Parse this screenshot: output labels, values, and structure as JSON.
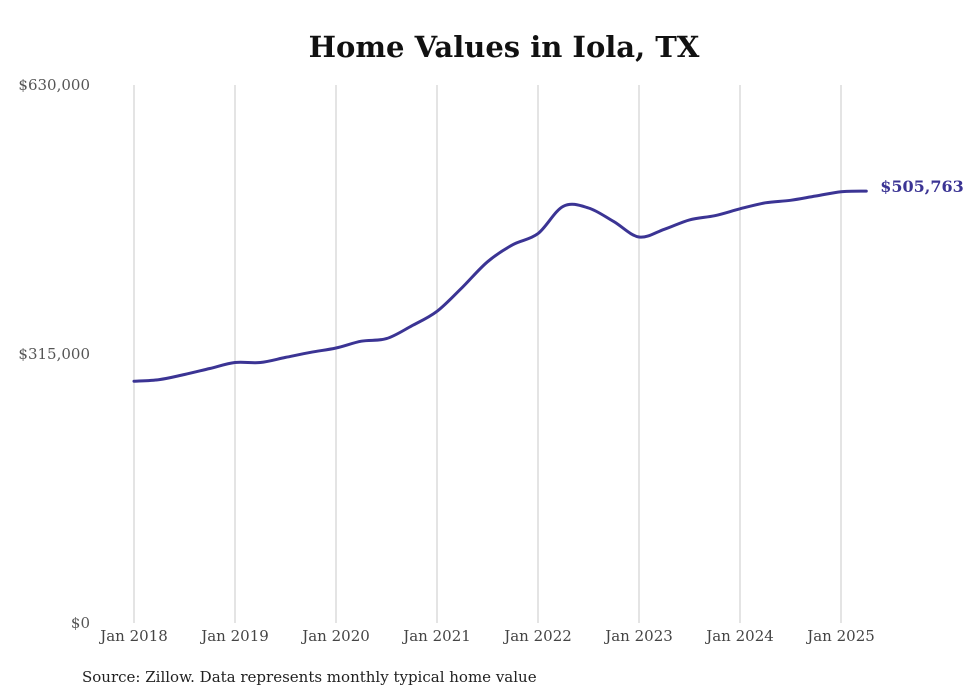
{
  "chart_data": {
    "type": "line",
    "title": "Home Values in Iola, TX",
    "source": "Source: Zillow. Data represents monthly typical home value",
    "ylim": [
      0,
      630000
    ],
    "yticks": [
      "$0",
      "$315,000",
      "$630,000"
    ],
    "ytick_values": [
      0,
      315000,
      630000
    ],
    "xticks": [
      "Jan 2018",
      "Jan 2019",
      "Jan 2020",
      "Jan 2021",
      "Jan 2022",
      "Jan 2023",
      "Jan 2024",
      "Jan 2025"
    ],
    "xtick_values": [
      "2018-01",
      "2019-01",
      "2020-01",
      "2021-01",
      "2022-01",
      "2023-01",
      "2024-01",
      "2025-01"
    ],
    "grid": "vertical",
    "line_color": "#3b3494",
    "end_label": "$505,763",
    "series": [
      {
        "x": [
          "2018-01",
          "2018-04",
          "2018-07",
          "2018-10",
          "2019-01",
          "2019-04",
          "2019-07",
          "2019-10",
          "2020-01",
          "2020-04",
          "2020-07",
          "2020-10",
          "2021-01",
          "2021-04",
          "2021-07",
          "2021-10",
          "2022-01",
          "2022-04",
          "2022-07",
          "2022-10",
          "2023-01",
          "2023-04",
          "2023-07",
          "2023-10",
          "2024-01",
          "2024-04",
          "2024-07",
          "2024-10",
          "2025-01",
          "2025-04"
        ],
        "values": [
          283000,
          285000,
          291000,
          298000,
          305000,
          305000,
          311000,
          317000,
          322000,
          330000,
          333000,
          348000,
          365000,
          393000,
          423000,
          443000,
          456000,
          488000,
          486000,
          470000,
          452000,
          461000,
          472000,
          477000,
          485000,
          492000,
          495000,
          500000,
          505000,
          505763
        ]
      }
    ]
  }
}
